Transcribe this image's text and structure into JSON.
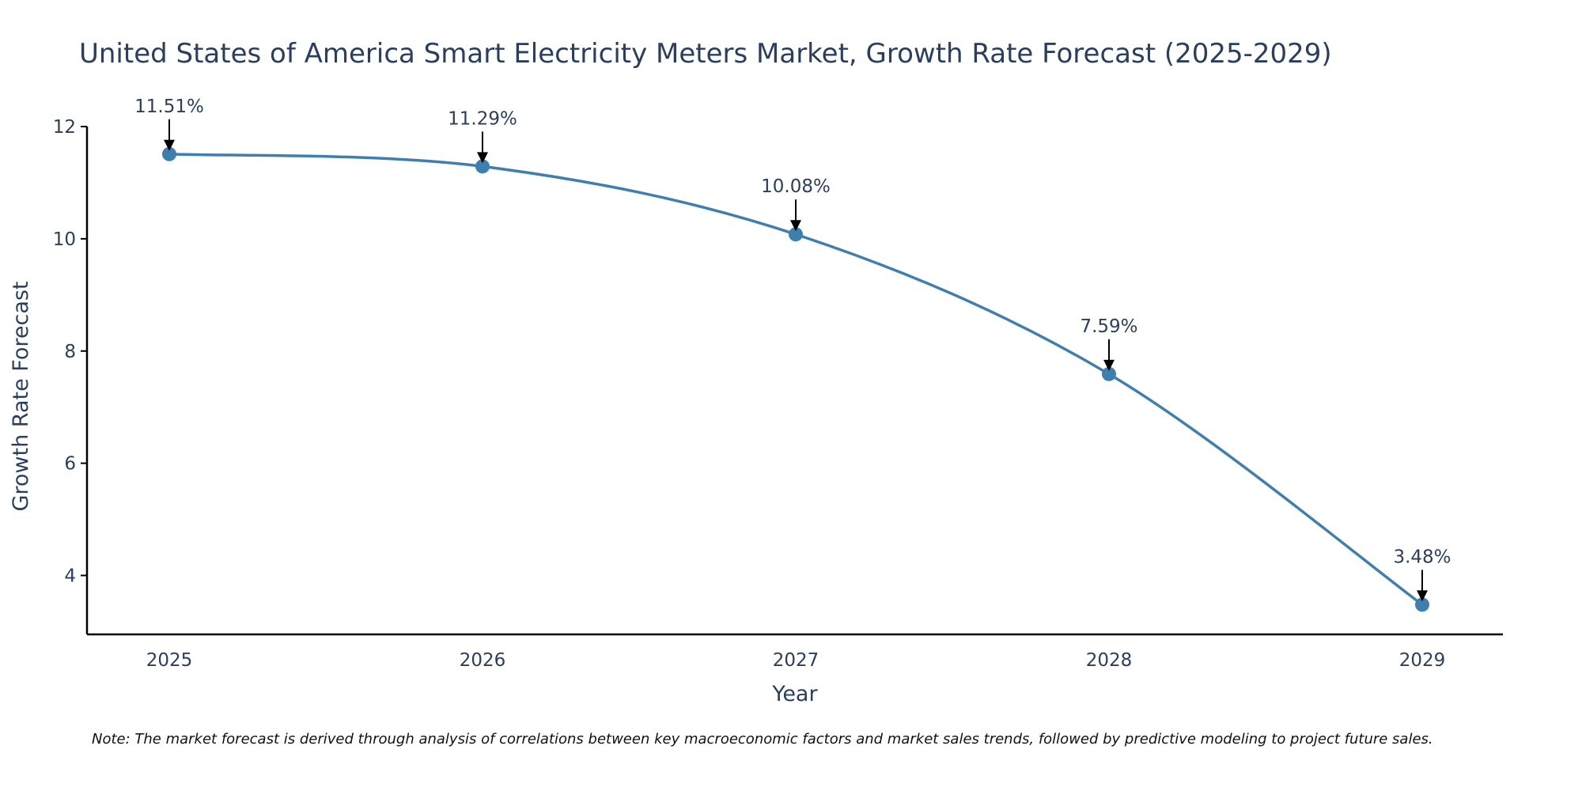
{
  "chart_data": {
    "type": "line",
    "title": "United States of America Smart Electricity Meters Market, Growth Rate Forecast (2025-2029)",
    "xlabel": "Year",
    "ylabel": "Growth Rate Forecast",
    "categories": [
      "2025",
      "2026",
      "2027",
      "2028",
      "2029"
    ],
    "series": [
      {
        "name": "Growth Rate Forecast",
        "values": [
          11.51,
          11.29,
          10.08,
          7.59,
          3.48
        ],
        "labels": [
          "11.51%",
          "11.29%",
          "10.08%",
          "7.59%",
          "3.48%"
        ]
      }
    ],
    "yticks": [
      "4",
      "6",
      "8",
      "10",
      "12"
    ],
    "ylim": [
      2.95,
      12.0
    ],
    "grid": false,
    "line_color": "#3f7fb0",
    "marker_color": "#3f7fb0",
    "note": "Note: The market forecast is derived through analysis of correlations between key macroeconomic factors and market sales trends, followed by predictive modeling to project future sales."
  }
}
